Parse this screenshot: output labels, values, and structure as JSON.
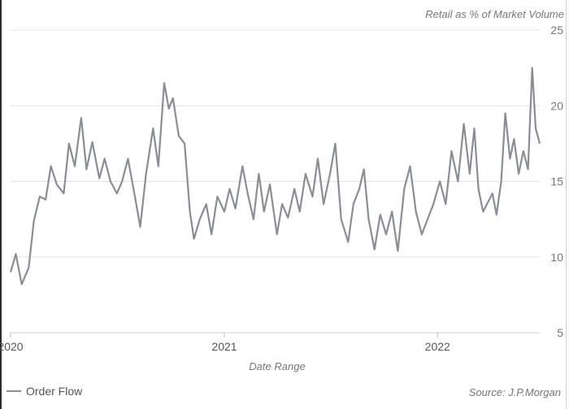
{
  "chart_data": {
    "type": "line",
    "title": "",
    "subtitle": "Retail as % of Market Volume",
    "xlabel": "Date Range",
    "ylabel": "",
    "source": "Source: J.P.Morgan",
    "ylim": [
      5,
      25
    ],
    "yticks": [
      5,
      10,
      15,
      20,
      25
    ],
    "xlim": [
      "2020-01-01",
      "2022-06-25"
    ],
    "xticks": [
      {
        "date": "2020-01-01",
        "label": "2020"
      },
      {
        "date": "2021-01-01",
        "label": "2021"
      },
      {
        "date": "2022-01-01",
        "label": "2022"
      }
    ],
    "grid": "horizontal",
    "legend_position": "bottom-left",
    "series": [
      {
        "name": "Order Flow",
        "color": "#8a8d93",
        "points": [
          [
            "2020-01-01",
            9.0
          ],
          [
            "2020-01-10",
            10.2
          ],
          [
            "2020-01-20",
            8.2
          ],
          [
            "2020-02-01",
            9.3
          ],
          [
            "2020-02-10",
            12.4
          ],
          [
            "2020-02-20",
            14.0
          ],
          [
            "2020-03-01",
            13.8
          ],
          [
            "2020-03-10",
            16.0
          ],
          [
            "2020-03-20",
            14.8
          ],
          [
            "2020-04-01",
            14.2
          ],
          [
            "2020-04-10",
            17.5
          ],
          [
            "2020-04-20",
            16.0
          ],
          [
            "2020-05-01",
            19.2
          ],
          [
            "2020-05-10",
            15.8
          ],
          [
            "2020-05-20",
            17.6
          ],
          [
            "2020-06-01",
            15.2
          ],
          [
            "2020-06-10",
            16.5
          ],
          [
            "2020-06-20",
            15.0
          ],
          [
            "2020-07-01",
            14.2
          ],
          [
            "2020-07-10",
            15.0
          ],
          [
            "2020-07-20",
            16.5
          ],
          [
            "2020-08-01",
            14.0
          ],
          [
            "2020-08-10",
            12.0
          ],
          [
            "2020-08-20",
            15.5
          ],
          [
            "2020-09-01",
            18.5
          ],
          [
            "2020-09-10",
            16.0
          ],
          [
            "2020-09-20",
            21.5
          ],
          [
            "2020-09-28",
            19.8
          ],
          [
            "2020-10-05",
            20.5
          ],
          [
            "2020-10-15",
            18.0
          ],
          [
            "2020-10-25",
            17.5
          ],
          [
            "2020-11-03",
            13.0
          ],
          [
            "2020-11-10",
            11.2
          ],
          [
            "2020-11-20",
            12.5
          ],
          [
            "2020-12-01",
            13.5
          ],
          [
            "2020-12-10",
            11.5
          ],
          [
            "2020-12-20",
            14.0
          ],
          [
            "2021-01-01",
            13.0
          ],
          [
            "2021-01-10",
            14.5
          ],
          [
            "2021-01-20",
            13.2
          ],
          [
            "2021-02-01",
            16.0
          ],
          [
            "2021-02-10",
            14.2
          ],
          [
            "2021-02-20",
            12.5
          ],
          [
            "2021-03-01",
            15.5
          ],
          [
            "2021-03-10",
            13.0
          ],
          [
            "2021-03-20",
            14.8
          ],
          [
            "2021-04-01",
            11.5
          ],
          [
            "2021-04-10",
            13.5
          ],
          [
            "2021-04-20",
            12.6
          ],
          [
            "2021-05-01",
            14.5
          ],
          [
            "2021-05-10",
            13.0
          ],
          [
            "2021-05-20",
            15.5
          ],
          [
            "2021-06-01",
            14.0
          ],
          [
            "2021-06-10",
            16.5
          ],
          [
            "2021-06-20",
            13.5
          ],
          [
            "2021-07-01",
            15.5
          ],
          [
            "2021-07-10",
            17.5
          ],
          [
            "2021-07-20",
            12.5
          ],
          [
            "2021-08-01",
            11.0
          ],
          [
            "2021-08-10",
            13.5
          ],
          [
            "2021-08-20",
            14.5
          ],
          [
            "2021-08-28",
            15.8
          ],
          [
            "2021-09-05",
            12.5
          ],
          [
            "2021-09-15",
            10.5
          ],
          [
            "2021-09-25",
            12.8
          ],
          [
            "2021-10-05",
            11.5
          ],
          [
            "2021-10-15",
            13.0
          ],
          [
            "2021-10-25",
            10.4
          ],
          [
            "2021-11-05",
            14.5
          ],
          [
            "2021-11-15",
            16.0
          ],
          [
            "2021-11-25",
            13.0
          ],
          [
            "2021-12-05",
            11.5
          ],
          [
            "2021-12-15",
            12.5
          ],
          [
            "2021-12-25",
            13.5
          ],
          [
            "2022-01-05",
            15.0
          ],
          [
            "2022-01-15",
            13.5
          ],
          [
            "2022-01-25",
            17.0
          ],
          [
            "2022-02-05",
            15.0
          ],
          [
            "2022-02-15",
            18.8
          ],
          [
            "2022-02-25",
            15.5
          ],
          [
            "2022-03-05",
            18.5
          ],
          [
            "2022-03-12",
            14.5
          ],
          [
            "2022-03-20",
            13.0
          ],
          [
            "2022-03-28",
            13.6
          ],
          [
            "2022-04-05",
            14.2
          ],
          [
            "2022-04-12",
            12.8
          ],
          [
            "2022-04-20",
            15.0
          ],
          [
            "2022-04-27",
            19.5
          ],
          [
            "2022-05-05",
            16.5
          ],
          [
            "2022-05-12",
            17.8
          ],
          [
            "2022-05-20",
            15.5
          ],
          [
            "2022-05-28",
            17.0
          ],
          [
            "2022-06-05",
            15.8
          ],
          [
            "2022-06-12",
            22.5
          ],
          [
            "2022-06-18",
            18.5
          ],
          [
            "2022-06-25",
            17.5
          ]
        ]
      }
    ]
  }
}
